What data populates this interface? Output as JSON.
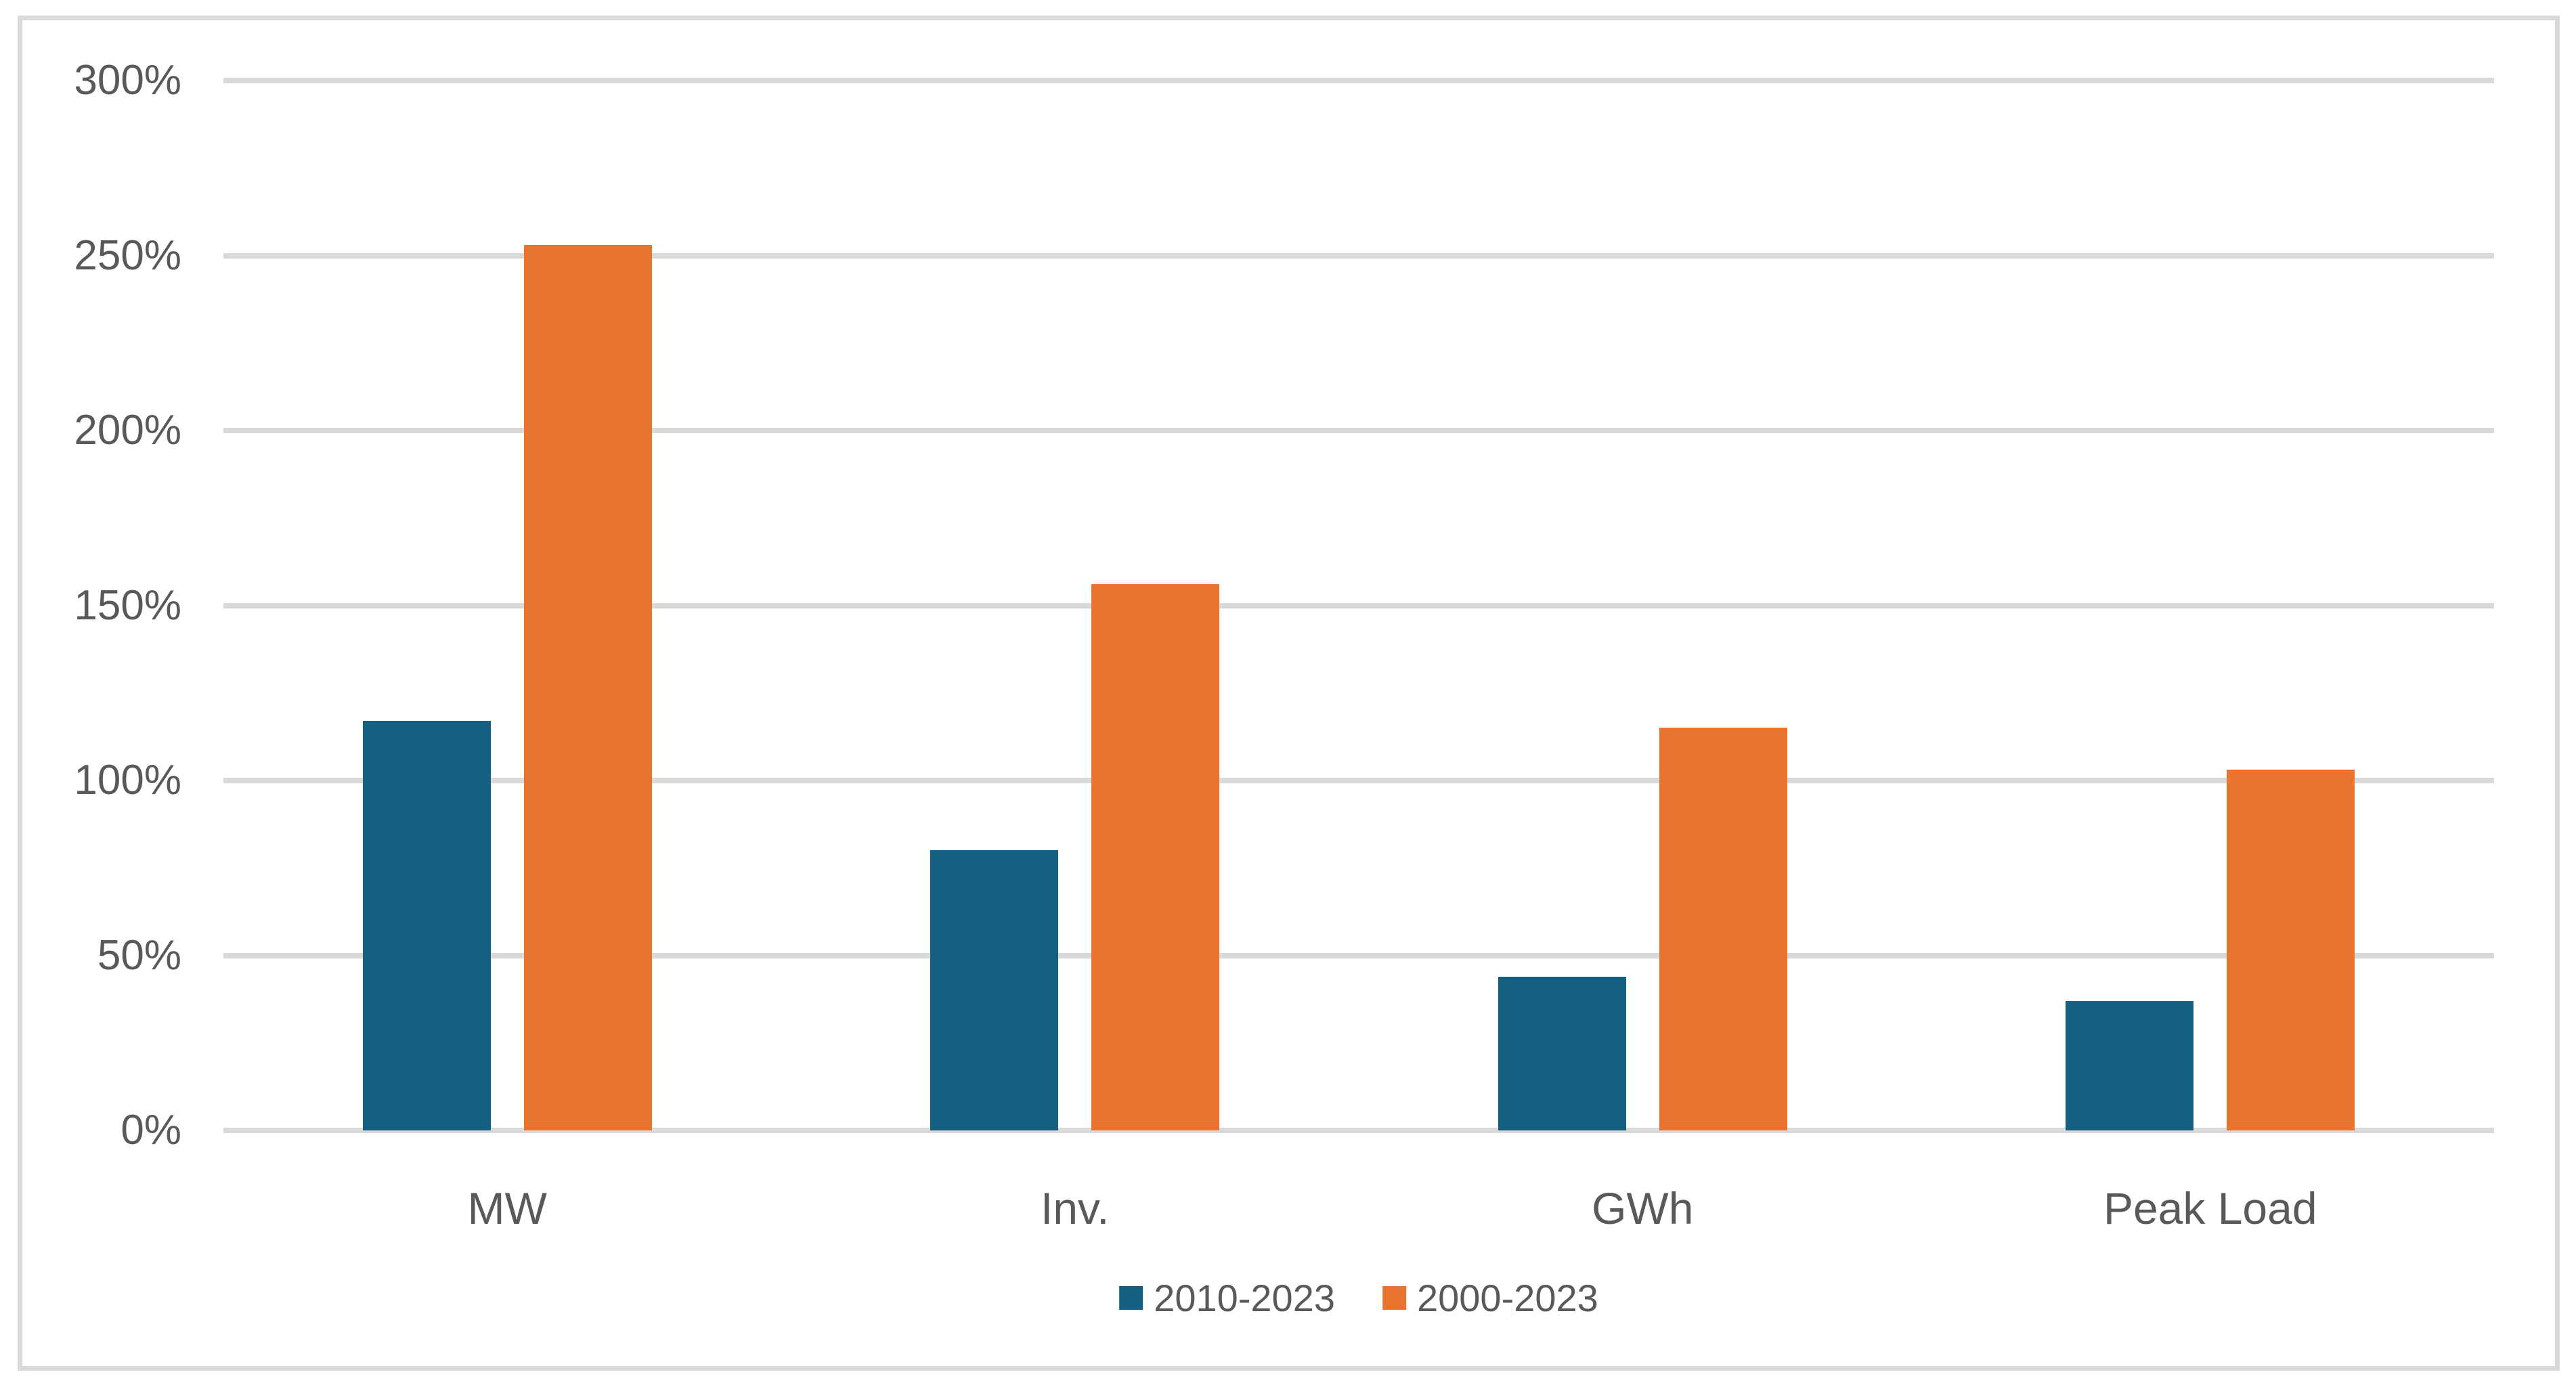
{
  "colors": {
    "background": "#FFFFFF",
    "frame_border": "#D9D9D9",
    "gridline": "#D9D9D9",
    "text": "#595959",
    "series_blue": "#155F81",
    "series_orange": "#E87431"
  },
  "chart_data": {
    "type": "bar",
    "title": "",
    "xlabel": "",
    "ylabel": "",
    "categories": [
      "MW",
      "Inv.",
      "GWh",
      "Peak Load"
    ],
    "series": [
      {
        "name": "2010-2023",
        "color": "#155F81",
        "values": [
          117,
          80,
          44,
          37
        ]
      },
      {
        "name": "2000-2023",
        "color": "#E87431",
        "values": [
          253,
          156,
          115,
          103
        ]
      }
    ],
    "value_unit": "%",
    "ylim": [
      0,
      300
    ],
    "grid": true,
    "legend_position": "bottom",
    "y_axis": {
      "ticks": [
        {
          "value": 0,
          "label": "0%"
        },
        {
          "value": 50,
          "label": "50%"
        },
        {
          "value": 100,
          "label": "100%"
        },
        {
          "value": 150,
          "label": "150%"
        },
        {
          "value": 200,
          "label": "200%"
        },
        {
          "value": 250,
          "label": "250%"
        },
        {
          "value": 300,
          "label": "300%"
        }
      ]
    }
  }
}
